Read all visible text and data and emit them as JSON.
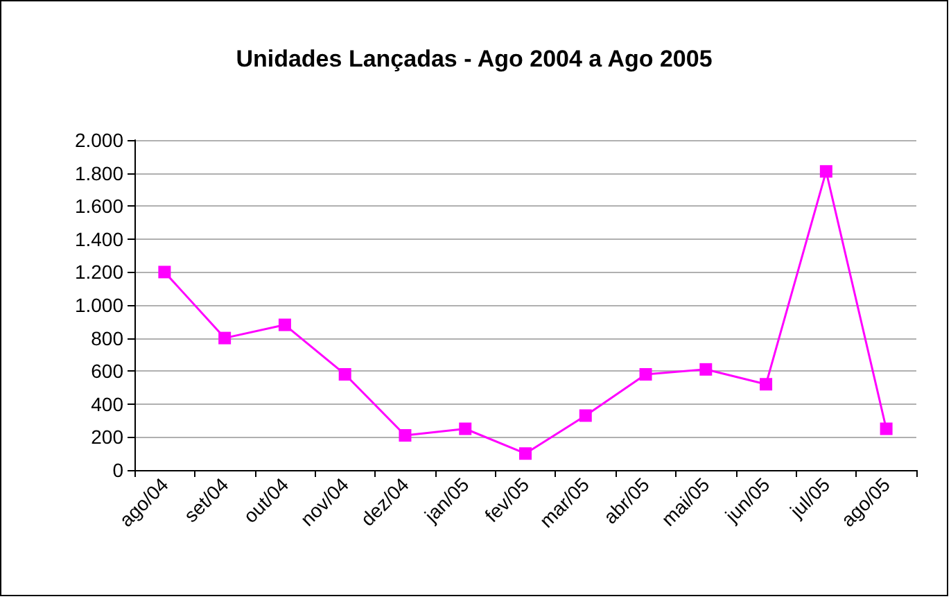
{
  "chart_data": {
    "type": "line",
    "title": "Unidades Lançadas - Ago 2004 a Ago 2005",
    "categories": [
      "ago/04",
      "set/04",
      "out/04",
      "nov/04",
      "dez/04",
      "jan/05",
      "fev/05",
      "mar/05",
      "abr/05",
      "mai/05",
      "jun/05",
      "jul/05",
      "ago/05"
    ],
    "series": [
      {
        "color": "#ff00ff",
        "values": [
          1200,
          800,
          880,
          580,
          210,
          250,
          100,
          330,
          580,
          610,
          520,
          1810,
          250
        ]
      }
    ],
    "ylim": [
      0,
      2000
    ],
    "yticks": [
      0,
      {
        "value": 200,
        "label": "200"
      },
      {
        "value": 400,
        "label": "400"
      },
      {
        "value": 600,
        "label": "600"
      },
      {
        "value": 800,
        "label": "800"
      },
      {
        "value": 1000,
        "label": "1.000"
      },
      {
        "value": 1200,
        "label": "1.200"
      },
      {
        "value": 1400,
        "label": "1.400"
      },
      {
        "value": 1600,
        "label": "1.600"
      },
      {
        "value": 1800,
        "label": "1.800"
      },
      {
        "value": 2000,
        "label": "2.000"
      }
    ],
    "grid": "y",
    "marker": "square",
    "line_style": "solid"
  }
}
